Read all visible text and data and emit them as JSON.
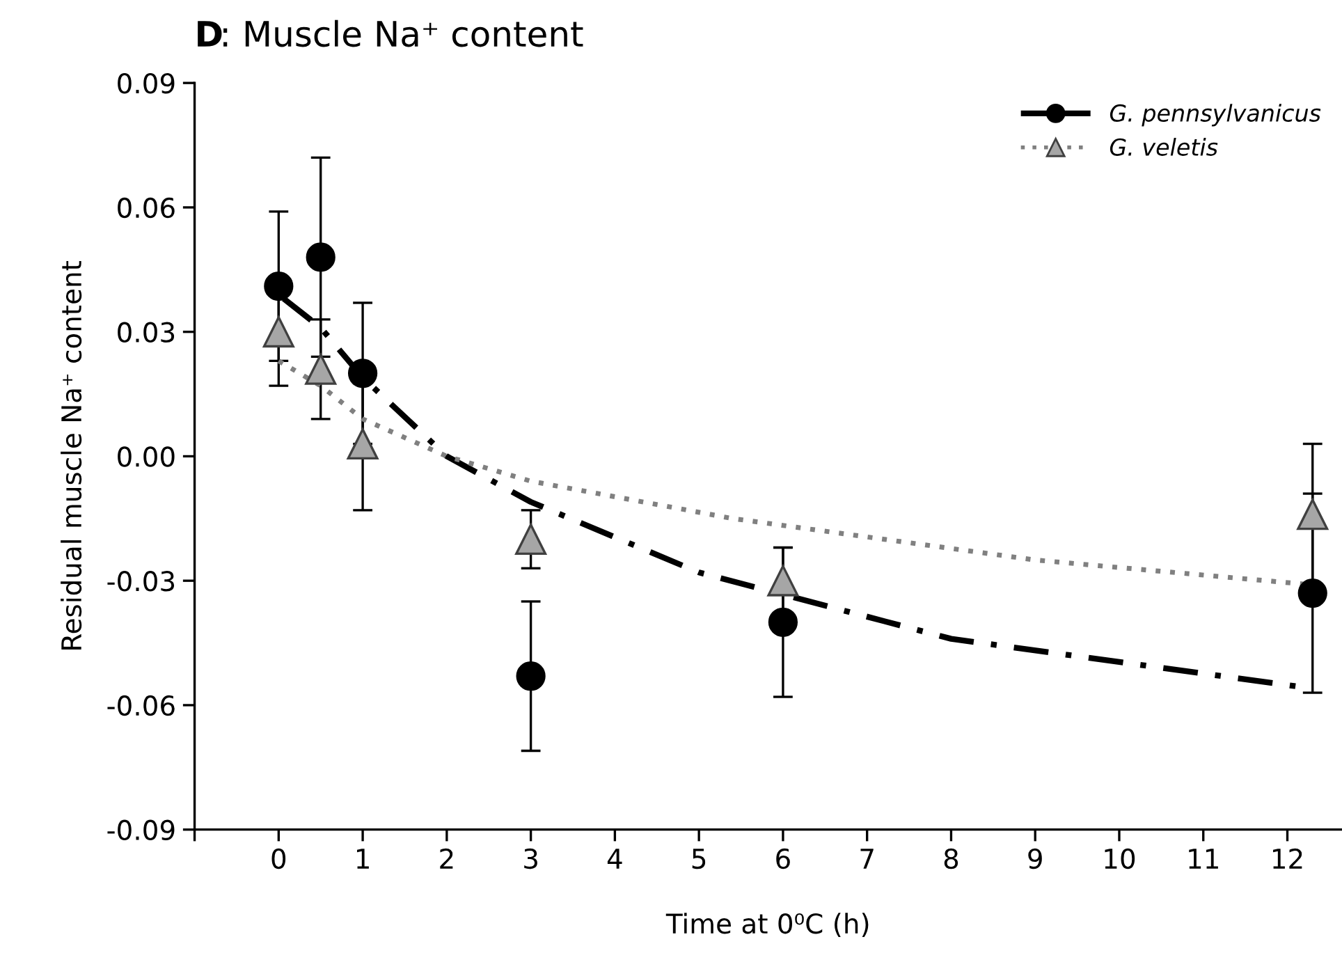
{
  "chart_data": {
    "type": "scatter",
    "title": "D: Muscle Na⁺ content",
    "xlabel": "Time at 0⁰C (h)",
    "ylabel": "Residual muscle Na⁺ content",
    "x": [
      0,
      0.5,
      1,
      3,
      6,
      12.3
    ],
    "series": [
      {
        "name": "G. pennsylvanicus",
        "color": "#000000",
        "marker": "circle",
        "line_style": "dashed",
        "values": [
          0.041,
          0.048,
          0.02,
          -0.053,
          -0.04,
          -0.033
        ],
        "errors": [
          0.018,
          0.024,
          0.017,
          0.018,
          0.018,
          0.024
        ]
      },
      {
        "name": "G. veletis",
        "color": "#a6a6a6",
        "marker": "triangle",
        "line_style": "dotted",
        "values": [
          0.03,
          0.021,
          0.003,
          -0.02,
          -0.03,
          -0.014
        ],
        "errors": [
          0.013,
          0.012,
          0.016,
          0.007,
          0.008,
          0.017
        ]
      },
      {
        "type": "line",
        "color": "#000000",
        "line_style": "dashdot",
        "x": [
          0.06,
          0.5,
          1,
          2,
          3,
          5,
          8,
          12.3
        ],
        "values": [
          0.038,
          0.031,
          0.019,
          0.0,
          -0.011,
          -0.028,
          -0.044,
          -0.056
        ]
      },
      {
        "type": "line",
        "color": "#808080",
        "line_style": "dotted",
        "x": [
          0,
          0.5,
          1,
          2,
          3,
          5.4,
          9,
          12.3
        ],
        "values": [
          0.023,
          0.017,
          0.009,
          0.0,
          -0.006,
          -0.015,
          -0.025,
          -0.031
        ]
      }
    ],
    "xlim": [
      -1,
      12.65
    ],
    "ylim": [
      -0.09,
      0.09
    ],
    "xticks": [
      {
        "value": -1,
        "label": null
      },
      0,
      1,
      2,
      3,
      4,
      5,
      6,
      7,
      8,
      9,
      10,
      11,
      12
    ],
    "yticks": [
      -0.09,
      -0.06,
      -0.03,
      {
        "value": 0,
        "label": "0.00"
      },
      0.03,
      0.06,
      0.09
    ],
    "grid": false,
    "legend": "top right"
  }
}
